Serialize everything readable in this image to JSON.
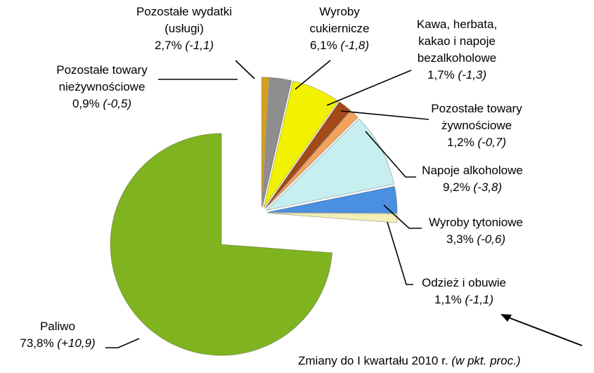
{
  "chart_data": {
    "type": "pie",
    "categories": [
      "Pozostałe towary\nnieżywnościowe",
      "Pozostałe wydatki\n(usługi)",
      "Wyroby\ncukiernicze",
      "Kawa, herbata,\nkakao i napoje\nbezalkoholowe",
      "Pozostałe towary\nżywnościowe",
      "Napoje alkoholowe",
      "Wyroby tytoniowe",
      "Odzież i obuwie",
      "Paliwo"
    ],
    "values": [
      0.9,
      2.7,
      6.1,
      1.7,
      1.2,
      9.2,
      3.3,
      1.1,
      73.8
    ],
    "value_labels": [
      "0,9%",
      "2,7%",
      "6,1%",
      "1,7%",
      "1,2%",
      "9,2%",
      "3,3%",
      "1,1%",
      "73,8%"
    ],
    "changes": [
      -0.5,
      -1.1,
      -1.8,
      -1.3,
      -0.7,
      -3.8,
      -0.6,
      -1.1,
      10.9
    ],
    "change_labels": [
      "(-0,5)",
      "(-1,1)",
      "(-1,8)",
      "(-1,3)",
      "(-0,7)",
      "(-3,8)",
      "(-0,6)",
      "(-1,1)",
      "(+10,9)"
    ],
    "colors": [
      "#d4a020",
      "#8e8e8e",
      "#f2f200",
      "#a34a18",
      "#f4a25c",
      "#c8eff0",
      "#4a8fe0",
      "#f4efb4",
      "#7fb420"
    ],
    "note": "Zmiany do I kwartału 2010 r.",
    "note_unit": "(w pkt. proc.)"
  }
}
